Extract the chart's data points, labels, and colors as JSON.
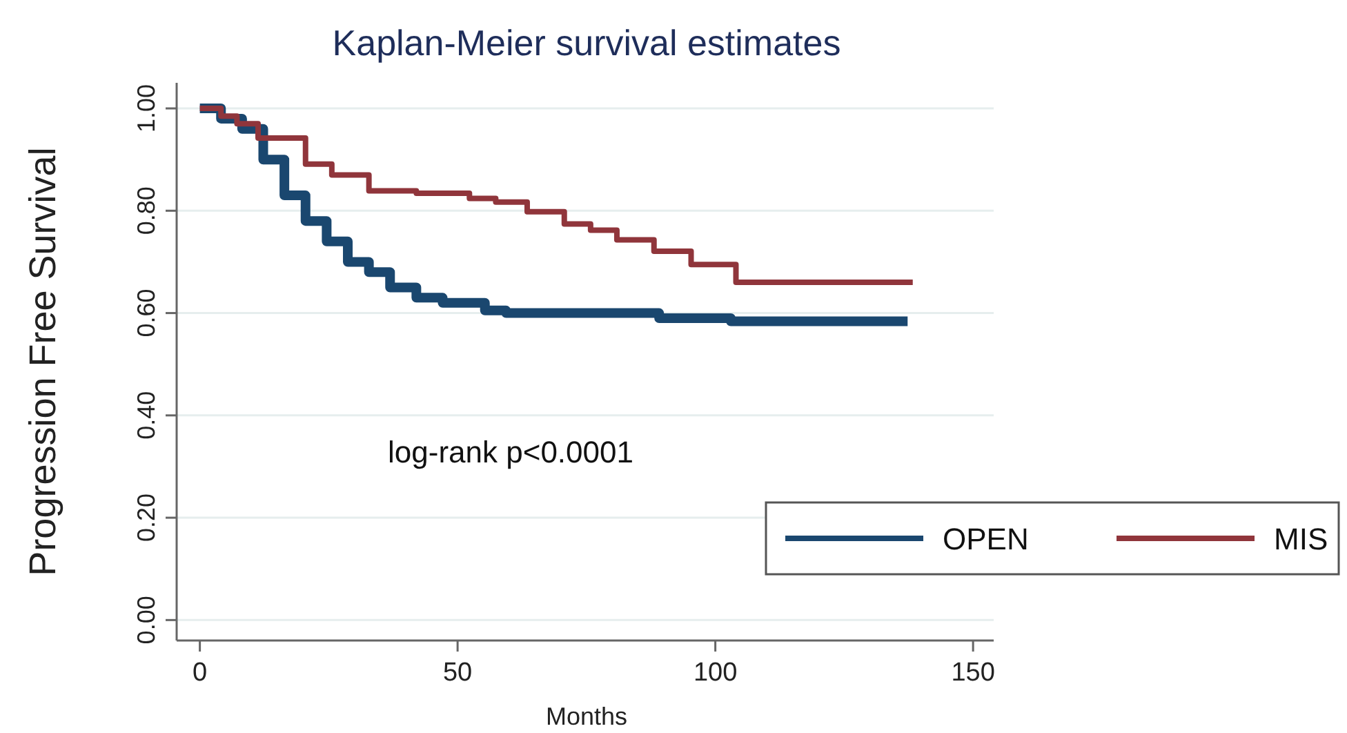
{
  "chart_data": {
    "type": "step",
    "title": "Kaplan-Meier survival estimates",
    "xlabel": "Months",
    "ylabel": "Progression Free Survival",
    "xlim": [
      -4.5,
      154
    ],
    "xticks": [
      0,
      50,
      100,
      150
    ],
    "ylim": [
      -0.04,
      1.05
    ],
    "yticks": [
      {
        "value": 0,
        "label": "0.00"
      },
      {
        "value": 0.2,
        "label": "0.20"
      },
      {
        "value": 0.4,
        "label": "0.40"
      },
      {
        "value": 0.6,
        "label": "0.60"
      },
      {
        "value": 0.8,
        "label": "0.80"
      },
      {
        "value": 1,
        "label": "1.00"
      }
    ],
    "grid": "y",
    "legend": "bottom right",
    "annotations": [
      "log-rank p<0.0001"
    ],
    "series": [
      {
        "name": "OPEN",
        "color": "#1a476f",
        "x": [
          0,
          4.1,
          8.2,
          12.3,
          16.4,
          20.5,
          24.6,
          28.7,
          32.8,
          36.9,
          42,
          47.1,
          55.3,
          59.4,
          89.1,
          103,
          137.3
        ],
        "values": [
          1,
          0.98,
          0.96,
          0.9,
          0.83,
          0.78,
          0.74,
          0.7,
          0.68,
          0.65,
          0.63,
          0.62,
          0.605,
          0.6,
          0.59,
          0.584,
          0.584
        ]
      },
      {
        "name": "MIS",
        "color": "#90353b",
        "x": [
          0,
          4.1,
          7.2,
          11.3,
          20.5,
          25.6,
          32.8,
          42,
          52.3,
          57.4,
          63.5,
          70.7,
          75.8,
          80.9,
          88.1,
          95.3,
          104,
          138.3
        ],
        "values": [
          1,
          0.985,
          0.97,
          0.942,
          0.891,
          0.87,
          0.839,
          0.834,
          0.824,
          0.817,
          0.798,
          0.774,
          0.762,
          0.743,
          0.721,
          0.695,
          0.66,
          0.66
        ]
      }
    ]
  }
}
